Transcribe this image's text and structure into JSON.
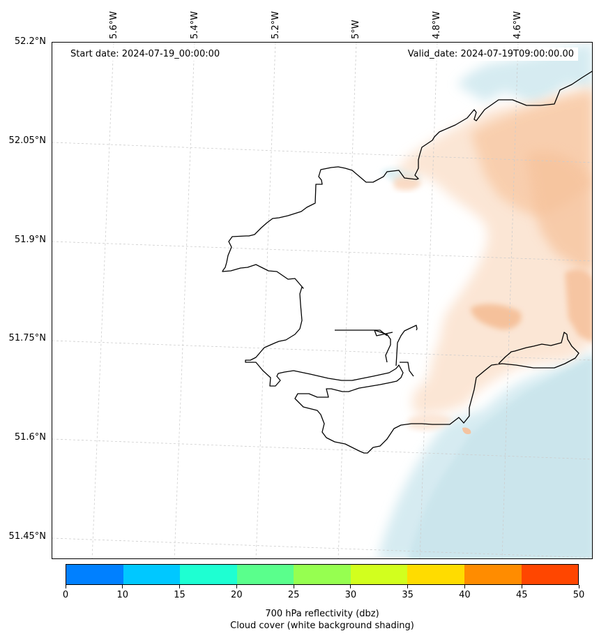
{
  "header": {
    "start_date": "Start date: 2024-07-19_00:00:00",
    "valid_date": "Valid_date: 2024-07-19T09:00:00.00"
  },
  "axes": {
    "lon_labels": [
      "5.6°W",
      "5.4°W",
      "5.2°W",
      "5°W",
      "4.8°W",
      "4.6°W"
    ],
    "lat_labels": [
      "52.2°N",
      "52.05°N",
      "51.9°N",
      "51.75°N",
      "51.6°N",
      "51.45°N"
    ]
  },
  "colorbar": {
    "ticks": [
      "0",
      "10",
      "15",
      "20",
      "25",
      "30",
      "35",
      "40",
      "45",
      "50"
    ],
    "colors": [
      "#0080ff",
      "#00c8ff",
      "#1effd2",
      "#5aff8c",
      "#96ff50",
      "#d2ff1e",
      "#ffdc00",
      "#ff8c00",
      "#ff4600"
    ],
    "title_line1": "700 hPa reflectivity (dbz)",
    "title_line2": "Cloud cover (white background shading)"
  },
  "colors": {
    "cloud": "#cfe8ef",
    "reflectivity": "#f9c9a4",
    "coast": "#000000",
    "grid": "#cccccc"
  }
}
